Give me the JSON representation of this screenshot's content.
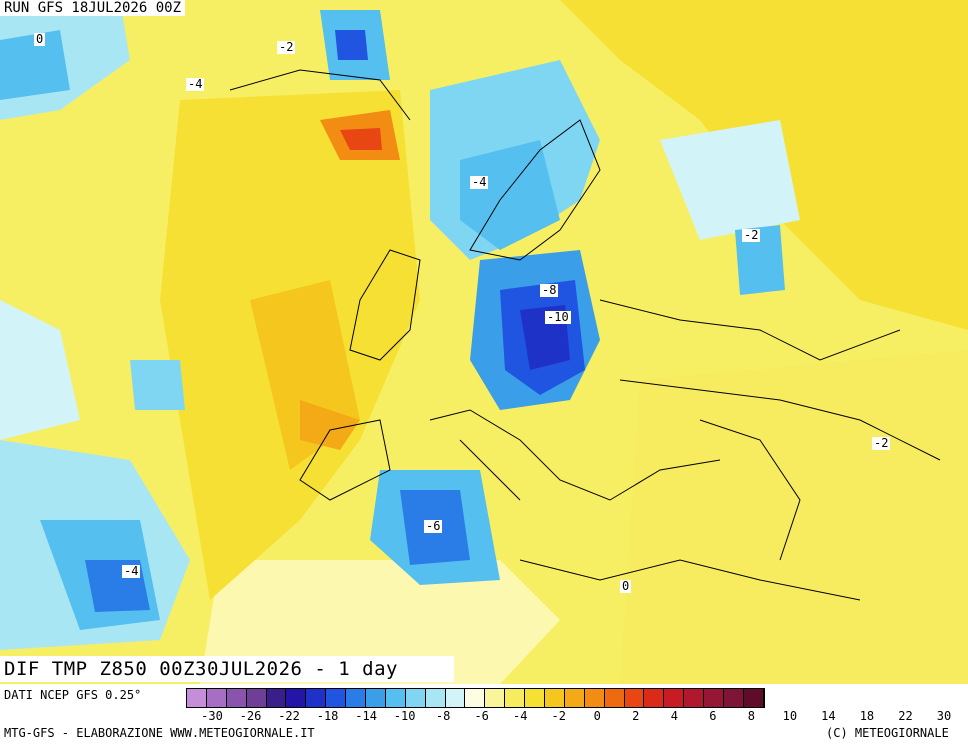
{
  "header": {
    "run_title": "RUN GFS 18JUL2026 00Z"
  },
  "map": {
    "title": "DIF TMP Z850 00Z30JUL2026 - 1 day",
    "contour_labels": [
      "0",
      "-2",
      "-4",
      "-6",
      "-8",
      "-10",
      "-2",
      "-4",
      "0",
      "-2"
    ]
  },
  "footer": {
    "source": "DATI NCEP GFS 0.25°",
    "credits": "MTG-GFS - ELABORAZIONE WWW.METEOGIORNALE.IT",
    "copyright": "(C) METEOGIORNALE"
  },
  "colorbar": {
    "colors": [
      "#c48fd8",
      "#a66fc4",
      "#8a54ad",
      "#6f3e96",
      "#3a1e8c",
      "#2414a8",
      "#1e32c8",
      "#1f55e0",
      "#2a7de6",
      "#3a9ee8",
      "#55bff0",
      "#7fd6f2",
      "#a8e6f4",
      "#d2f3f7",
      "#fdfde3",
      "#faf59a",
      "#f7ec5f",
      "#f6e033",
      "#f5c61d",
      "#f4aa16",
      "#f28c12",
      "#ee6a10",
      "#e84612",
      "#dc2a18",
      "#c81c24",
      "#b0182e",
      "#961636",
      "#7e1438",
      "#5e0c2a"
    ],
    "tick_labels": [
      "-30",
      "-26",
      "-22",
      "-18",
      "-14",
      "-10",
      "-8",
      "-6",
      "-4",
      "-2",
      "0",
      "2",
      "4",
      "6",
      "8",
      "10",
      "14",
      "18",
      "22",
      "30"
    ]
  },
  "legend_colors": {
    "cold_strong": "#1e32c8",
    "cold_mild": "#7fd6f2",
    "neutral": "#fdfde3",
    "warm_mild": "#f7ec5f",
    "warm_strong": "#f28c12"
  }
}
